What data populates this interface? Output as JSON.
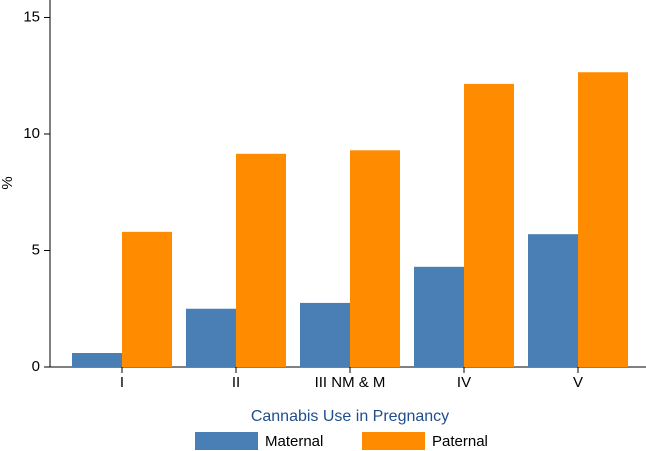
{
  "chart_data": {
    "type": "bar",
    "y_label": "%",
    "legend_title": "Cannabis Use in Pregnancy",
    "categories": [
      "I",
      "II",
      "III NM & M",
      "IV",
      "V"
    ],
    "series": [
      {
        "name": "Maternal",
        "color": "#4a7fb5",
        "values": [
          0.6,
          2.5,
          2.75,
          4.3,
          5.7
        ]
      },
      {
        "name": "Paternal",
        "color": "#ff8c00",
        "values": [
          5.8,
          9.15,
          9.3,
          12.15,
          12.65
        ]
      }
    ],
    "ylim": [
      0,
      15.75
    ],
    "yticks": [
      0,
      5,
      10,
      15
    ],
    "grid": false,
    "legend": "bottom"
  }
}
